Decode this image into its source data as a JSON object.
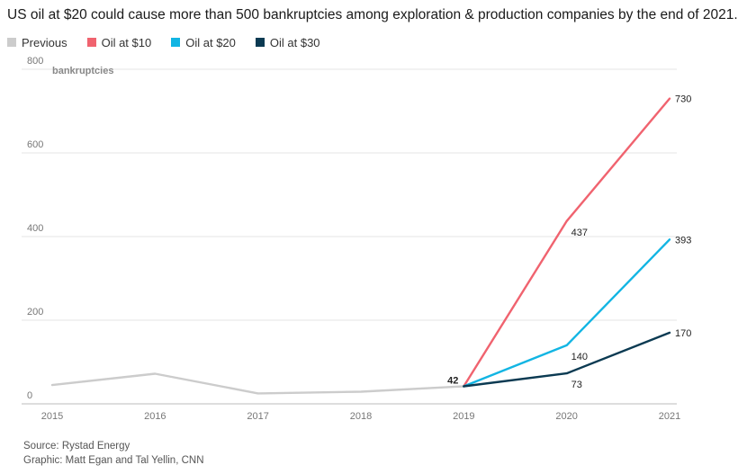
{
  "chart_data": {
    "type": "line",
    "title": "US oil at $20 could cause more than 500 bankruptcies among exploration & production companies by the end of 2021.",
    "ylabel": "bankruptcies",
    "xlabel": "",
    "x": [
      "2015",
      "2016",
      "2017",
      "2018",
      "2019",
      "2020",
      "2021"
    ],
    "xlim": [
      2015,
      2021
    ],
    "ylim": [
      0,
      800
    ],
    "yticks": [
      "0",
      "200",
      "400",
      "600",
      "800"
    ],
    "grid": true,
    "legend_position": "top-left",
    "series": [
      {
        "name": "Previous",
        "color": "#cccccc",
        "points": [
          [
            2015,
            45
          ],
          [
            2016,
            72
          ],
          [
            2017,
            25
          ],
          [
            2018,
            29
          ],
          [
            2019,
            42
          ]
        ]
      },
      {
        "name": "Oil at $10",
        "color": "#f0636f",
        "points": [
          [
            2019,
            42
          ],
          [
            2020,
            437
          ],
          [
            2021,
            730
          ]
        ]
      },
      {
        "name": "Oil at $20",
        "color": "#12b5e3",
        "points": [
          [
            2019,
            42
          ],
          [
            2020,
            140
          ],
          [
            2021,
            393
          ]
        ]
      },
      {
        "name": "Oil at $30",
        "color": "#0b3a52",
        "points": [
          [
            2019,
            42
          ],
          [
            2020,
            73
          ],
          [
            2021,
            170
          ]
        ]
      }
    ],
    "annotations": [
      {
        "text": "42",
        "x": 2019,
        "y": 42,
        "bold": true,
        "place": "left"
      },
      {
        "text": "437",
        "x": 2020,
        "y": 437,
        "place": "right-below"
      },
      {
        "text": "140",
        "x": 2020,
        "y": 140,
        "place": "right-below"
      },
      {
        "text": "73",
        "x": 2020,
        "y": 73,
        "place": "right-below"
      },
      {
        "text": "730",
        "x": 2021,
        "y": 730,
        "place": "right"
      },
      {
        "text": "393",
        "x": 2021,
        "y": 393,
        "place": "right"
      },
      {
        "text": "170",
        "x": 2021,
        "y": 170,
        "place": "right"
      }
    ]
  },
  "footer": {
    "source": "Source: Rystad Energy",
    "graphic": "Graphic: Matt Egan and Tal Yellin, CNN"
  }
}
